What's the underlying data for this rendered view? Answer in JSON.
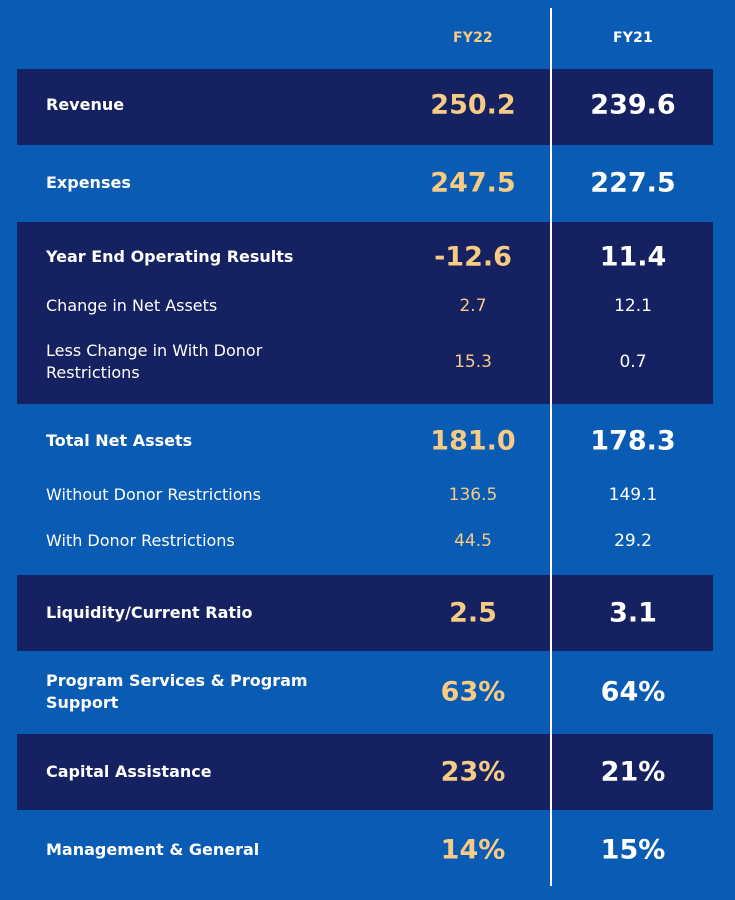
{
  "headers": {
    "fy22": "FY22",
    "fy21": "FY21"
  },
  "rows": [
    {
      "label": "Revenue",
      "fy22": "250.2",
      "fy21": "239.6"
    },
    {
      "label": "Expenses",
      "fy22": "247.5",
      "fy21": "227.5"
    },
    {
      "label": "Year End Operating Results",
      "fy22": "-12.6",
      "fy21": "11.4"
    },
    {
      "label": "Change in Net Assets",
      "fy22": "2.7",
      "fy21": "12.1"
    },
    {
      "label": "Less Change in With Donor Restrictions",
      "fy22": "15.3",
      "fy21": "0.7"
    },
    {
      "label": "Total Net Assets",
      "fy22": "181.0",
      "fy21": "178.3"
    },
    {
      "label": "Without Donor Restrictions",
      "fy22": "136.5",
      "fy21": "149.1"
    },
    {
      "label": "With Donor Restrictions",
      "fy22": "44.5",
      "fy21": "29.2"
    },
    {
      "label": "Liquidity/Current Ratio",
      "fy22": "2.5",
      "fy21": "3.1"
    },
    {
      "label": "Program Services & Program Support",
      "fy22": "63%",
      "fy21": "64%"
    },
    {
      "label": "Capital Assistance",
      "fy22": "23%",
      "fy21": "21%"
    },
    {
      "label": "Management & General",
      "fy22": "14%",
      "fy21": "15%"
    }
  ]
}
